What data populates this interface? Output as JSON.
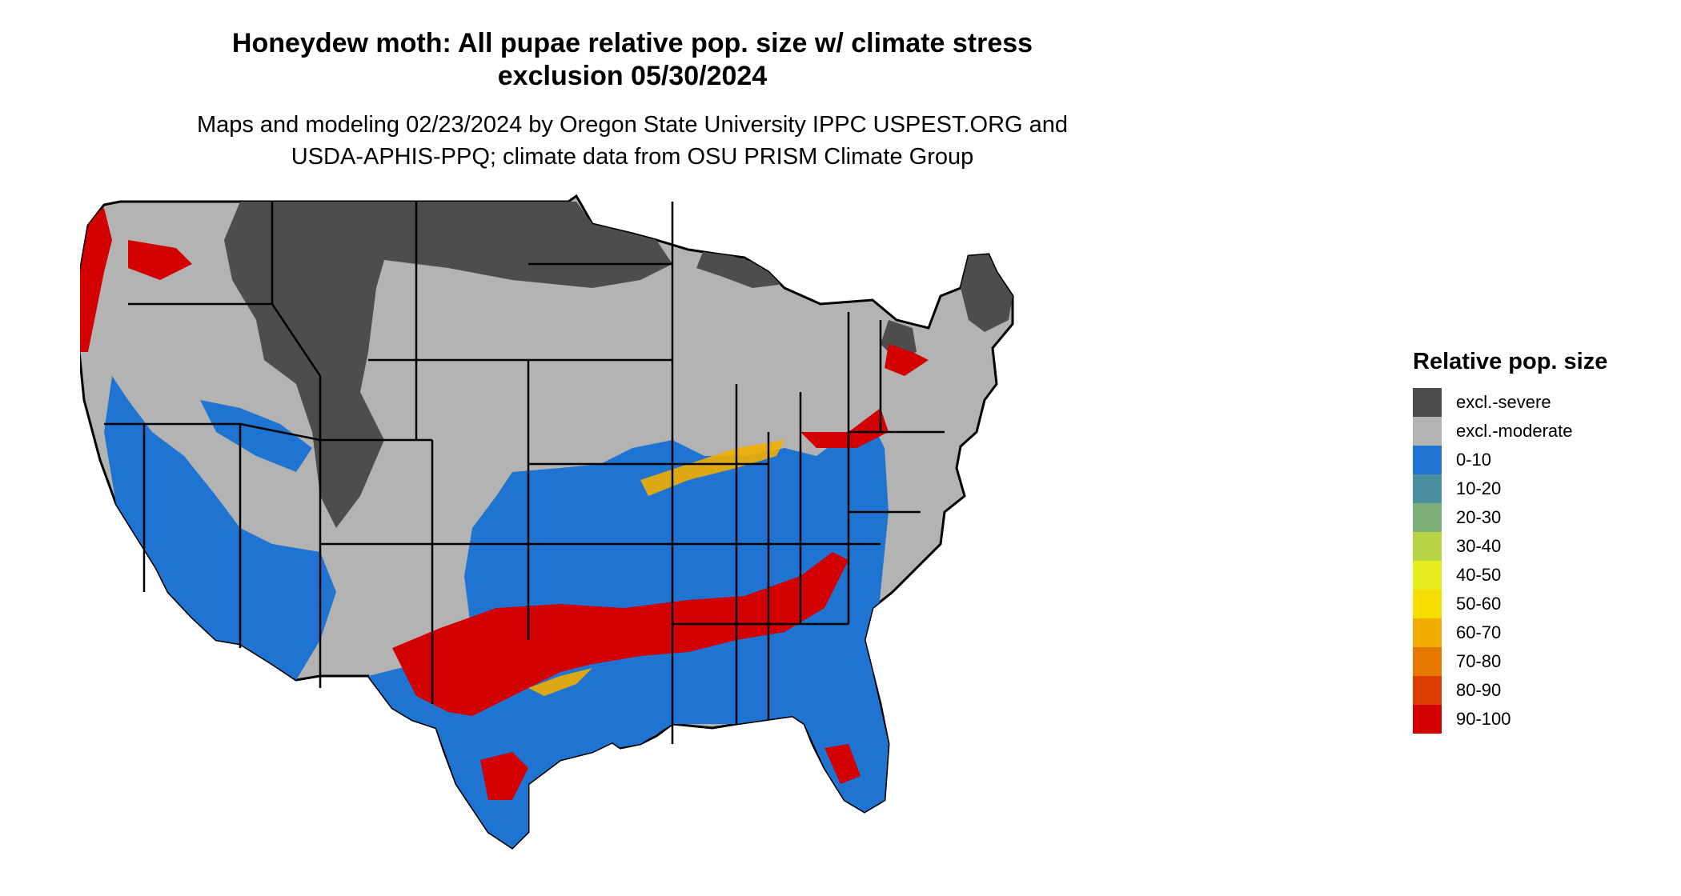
{
  "title": {
    "line1": "Honeydew moth: All pupae relative pop. size w/ climate stress",
    "line2": "exclusion 05/30/2024"
  },
  "subtitle": {
    "line1": "Maps and modeling 02/23/2024 by Oregon State University IPPC USPEST.ORG and",
    "line2": "USDA-APHIS-PPQ; climate data from OSU PRISM Climate Group"
  },
  "legend": {
    "title": "Relative pop. size",
    "items": [
      {
        "label": "excl.-severe",
        "color": "#4d4d4d"
      },
      {
        "label": "excl.-moderate",
        "color": "#b3b3b3"
      },
      {
        "label": "0-10",
        "color": "#1f74d1"
      },
      {
        "label": "10-20",
        "color": "#4a8ea0"
      },
      {
        "label": "20-30",
        "color": "#7fb07a"
      },
      {
        "label": "30-40",
        "color": "#b6d444"
      },
      {
        "label": "40-50",
        "color": "#e3ee1c"
      },
      {
        "label": "50-60",
        "color": "#f8de00"
      },
      {
        "label": "60-70",
        "color": "#f2ae00"
      },
      {
        "label": "70-80",
        "color": "#e67800"
      },
      {
        "label": "80-90",
        "color": "#dc3c00"
      },
      {
        "label": "90-100",
        "color": "#d20000"
      }
    ]
  }
}
